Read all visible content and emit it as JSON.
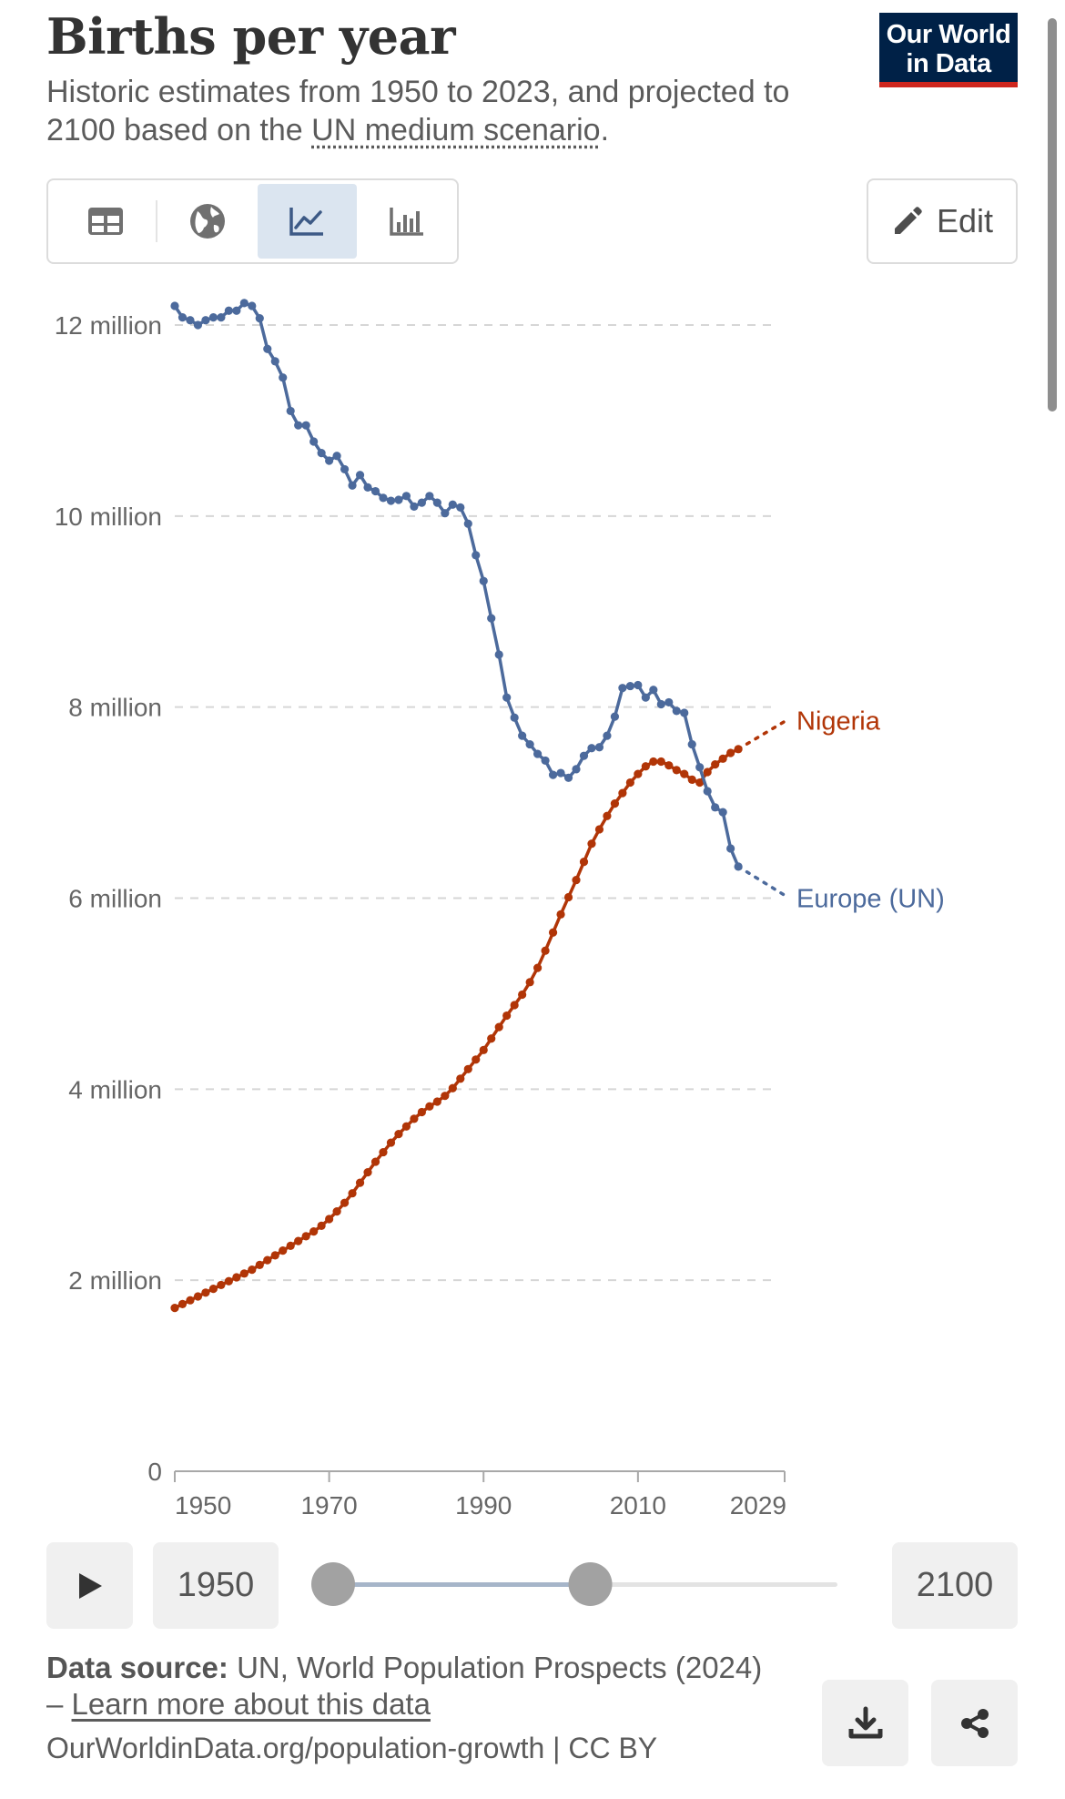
{
  "header": {
    "title": "Births per year",
    "subtitle_pre": "Historic estimates from 1950 to 2023, and projected to 2100 based on the ",
    "subtitle_link": "UN medium scenario",
    "subtitle_post": ".",
    "logo_line1": "Our World",
    "logo_line2": "in Data"
  },
  "tabs": [
    {
      "name": "table",
      "icon": "table-icon"
    },
    {
      "name": "map",
      "icon": "globe-icon"
    },
    {
      "name": "line chart",
      "icon": "line-chart-icon",
      "active": true
    },
    {
      "name": "bar chart",
      "icon": "bar-chart-icon"
    }
  ],
  "edit_label": "Edit",
  "colors": {
    "nigeria": "#b13507",
    "europe": "#4c6a9c",
    "grid": "#d6d6d6",
    "logo_bg": "#002147",
    "logo_accent": "#ce261e"
  },
  "chart_data": {
    "type": "line",
    "title": "Births per year",
    "ylim": [
      0,
      12000000
    ],
    "xlim": [
      1950,
      2029
    ],
    "y_ticks": [
      0,
      2000000,
      4000000,
      6000000,
      8000000,
      10000000,
      12000000
    ],
    "y_tick_labels": [
      "0",
      "2 million",
      "4 million",
      "6 million",
      "8 million",
      "10 million",
      "12 million"
    ],
    "x_ticks": [
      1950,
      1970,
      1990,
      2010,
      2029
    ],
    "x_tick_labels": [
      "1950",
      "1970",
      "1990",
      "2010",
      "2029"
    ],
    "projection_start": 2024,
    "projection_end_year": 2029,
    "series": [
      {
        "name": "Nigeria",
        "label": "Nigeria",
        "color": "#b13507",
        "x": [
          1950,
          1951,
          1952,
          1953,
          1954,
          1955,
          1956,
          1957,
          1958,
          1959,
          1960,
          1961,
          1962,
          1963,
          1964,
          1965,
          1966,
          1967,
          1968,
          1969,
          1970,
          1971,
          1972,
          1973,
          1974,
          1975,
          1976,
          1977,
          1978,
          1979,
          1980,
          1981,
          1982,
          1983,
          1984,
          1985,
          1986,
          1987,
          1988,
          1989,
          1990,
          1991,
          1992,
          1993,
          1994,
          1995,
          1996,
          1997,
          1998,
          1999,
          2000,
          2001,
          2002,
          2003,
          2004,
          2005,
          2006,
          2007,
          2008,
          2009,
          2010,
          2011,
          2012,
          2013,
          2014,
          2015,
          2016,
          2017,
          2018,
          2019,
          2020,
          2021,
          2022,
          2023,
          2029
        ],
        "values": [
          1710000,
          1750000,
          1790000,
          1830000,
          1870000,
          1910000,
          1950000,
          1990000,
          2030000,
          2070000,
          2110000,
          2160000,
          2210000,
          2260000,
          2310000,
          2360000,
          2410000,
          2460000,
          2510000,
          2570000,
          2640000,
          2720000,
          2810000,
          2910000,
          3020000,
          3130000,
          3240000,
          3340000,
          3440000,
          3530000,
          3610000,
          3690000,
          3760000,
          3820000,
          3870000,
          3930000,
          4010000,
          4110000,
          4210000,
          4310000,
          4410000,
          4530000,
          4650000,
          4770000,
          4880000,
          4990000,
          5120000,
          5270000,
          5450000,
          5640000,
          5830000,
          6010000,
          6190000,
          6380000,
          6570000,
          6720000,
          6860000,
          6990000,
          7100000,
          7210000,
          7300000,
          7380000,
          7430000,
          7430000,
          7390000,
          7340000,
          7300000,
          7240000,
          7210000,
          7320000,
          7400000,
          7460000,
          7520000,
          7560000,
          7850000
        ],
        "end_label_value": 7860000
      },
      {
        "name": "Europe (UN)",
        "label": "Europe (UN)",
        "color": "#4c6a9c",
        "x": [
          1950,
          1951,
          1952,
          1953,
          1954,
          1955,
          1956,
          1957,
          1958,
          1959,
          1960,
          1961,
          1962,
          1963,
          1964,
          1965,
          1966,
          1967,
          1968,
          1969,
          1970,
          1971,
          1972,
          1973,
          1974,
          1975,
          1976,
          1977,
          1978,
          1979,
          1980,
          1981,
          1982,
          1983,
          1984,
          1985,
          1986,
          1987,
          1988,
          1989,
          1990,
          1991,
          1992,
          1993,
          1994,
          1995,
          1996,
          1997,
          1998,
          1999,
          2000,
          2001,
          2002,
          2003,
          2004,
          2005,
          2006,
          2007,
          2008,
          2009,
          2010,
          2011,
          2012,
          2013,
          2014,
          2015,
          2016,
          2017,
          2018,
          2019,
          2020,
          2021,
          2022,
          2023,
          2029
        ],
        "values": [
          12200000,
          12080000,
          12050000,
          12000000,
          12050000,
          12080000,
          12080000,
          12150000,
          12150000,
          12230000,
          12200000,
          12070000,
          11750000,
          11620000,
          11450000,
          11100000,
          10950000,
          10950000,
          10780000,
          10660000,
          10580000,
          10630000,
          10490000,
          10320000,
          10430000,
          10300000,
          10260000,
          10190000,
          10160000,
          10170000,
          10210000,
          10100000,
          10140000,
          10210000,
          10140000,
          10030000,
          10120000,
          10090000,
          9920000,
          9590000,
          9320000,
          8930000,
          8550000,
          8100000,
          7890000,
          7700000,
          7610000,
          7510000,
          7440000,
          7290000,
          7310000,
          7260000,
          7350000,
          7490000,
          7570000,
          7580000,
          7700000,
          7900000,
          8200000,
          8220000,
          8230000,
          8100000,
          8180000,
          8030000,
          8050000,
          7960000,
          7940000,
          7610000,
          7370000,
          7120000,
          6950000,
          6900000,
          6520000,
          6330000,
          6030000
        ],
        "end_label_value": 6000000
      }
    ]
  },
  "timeline": {
    "start_label": "1950",
    "end_label": "2100",
    "handle_start": 0.0,
    "handle_end": 0.51
  },
  "footer": {
    "source_label": "Data source:",
    "source_text": " UN, World Population Prospects (2024) – ",
    "learn_more": "Learn more about this data",
    "url_text": "OurWorldinData.org/population-growth | CC BY"
  }
}
